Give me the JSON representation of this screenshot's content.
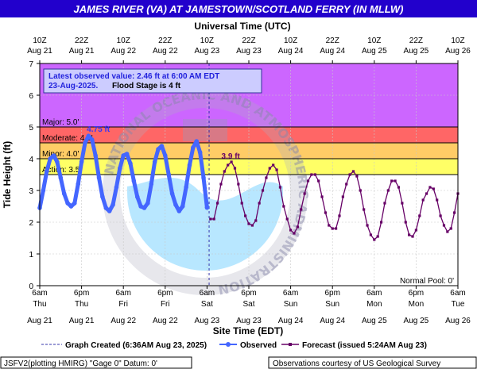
{
  "chart_data": {
    "type": "line",
    "title": "JAMES RIVER (VA) AT JAMESTOWN/SCOTLAND FERRY (IN MLLW)",
    "top_axis_title": "Universal Time (UTC)",
    "xlabel": "Site Time (EDT)",
    "ylabel": "Tide Height (ft)",
    "ylim": [
      0,
      7
    ],
    "y_ticks": [
      "0",
      "1",
      "2",
      "3",
      "4",
      "5",
      "6",
      "7"
    ],
    "x_range_hours": [
      0,
      120
    ],
    "x_ticks_bottom": [
      {
        "time": "6am",
        "day": "Thu",
        "date": "Aug 21"
      },
      {
        "time": "6pm",
        "day": "Thu",
        "date": "Aug 21"
      },
      {
        "time": "6am",
        "day": "Fri",
        "date": "Aug 22"
      },
      {
        "time": "6pm",
        "day": "Fri",
        "date": "Aug 22"
      },
      {
        "time": "6am",
        "day": "Sat",
        "date": "Aug 23"
      },
      {
        "time": "6pm",
        "day": "Sat",
        "date": "Aug 23"
      },
      {
        "time": "6am",
        "day": "Sun",
        "date": "Aug 24"
      },
      {
        "time": "6pm",
        "day": "Sun",
        "date": "Aug 24"
      },
      {
        "time": "6am",
        "day": "Mon",
        "date": "Aug 25"
      },
      {
        "time": "6pm",
        "day": "Mon",
        "date": "Aug 25"
      },
      {
        "time": "6am",
        "day": "Tue",
        "date": "Aug 26"
      }
    ],
    "x_ticks_top": [
      {
        "time": "10Z",
        "date": "Aug 21"
      },
      {
        "time": "22Z",
        "date": "Aug 21"
      },
      {
        "time": "10Z",
        "date": "Aug 22"
      },
      {
        "time": "22Z",
        "date": "Aug 22"
      },
      {
        "time": "10Z",
        "date": "Aug 23"
      },
      {
        "time": "22Z",
        "date": "Aug 23"
      },
      {
        "time": "10Z",
        "date": "Aug 24"
      },
      {
        "time": "22Z",
        "date": "Aug 24"
      },
      {
        "time": "10Z",
        "date": "Aug 25"
      },
      {
        "time": "22Z",
        "date": "Aug 25"
      },
      {
        "time": "10Z",
        "date": "Aug 26"
      }
    ],
    "flood_categories": [
      {
        "name": "Major",
        "label": "Major: 5.0'",
        "min": 5.0,
        "max": 7.0,
        "color": "#cc66ff"
      },
      {
        "name": "Moderate",
        "label": "Moderate: 4.5'",
        "min": 4.5,
        "max": 5.0,
        "color": "#ff6666"
      },
      {
        "name": "Minor",
        "label": "Minor: 4.0'",
        "min": 4.0,
        "max": 4.5,
        "color": "#ffcc66"
      },
      {
        "name": "Action",
        "label": "Action: 3.5'",
        "min": 3.5,
        "max": 4.0,
        "color": "#ffff66"
      }
    ],
    "normal_pool_label": "Normal Pool: 0'",
    "latest_observation": {
      "line1": "Latest observed value: 2.46 ft at 6:00 AM EDT",
      "line2": "23-Aug-2025.",
      "flood_stage": "Flood Stage is 4 ft"
    },
    "graph_created_hours": 48.6,
    "annotations": [
      {
        "text": "4.75 ft",
        "x_hours": 16.8,
        "y": 4.75,
        "color": "#3333ff"
      },
      {
        "text": "3.9 ft",
        "x_hours": 54.8,
        "y": 3.9,
        "color": "#660066"
      }
    ],
    "series": [
      {
        "name": "Observed",
        "color": "#4466ff",
        "x_hours": [
          0,
          1,
          2,
          3,
          4,
          5,
          6,
          7,
          8,
          9,
          10,
          11,
          12,
          13,
          14,
          15,
          16,
          17,
          18,
          19,
          20,
          21,
          22,
          23,
          24,
          25,
          26,
          27,
          28,
          29,
          30,
          31,
          32,
          33,
          34,
          35,
          36,
          37,
          38,
          39,
          40,
          41,
          42,
          43,
          44,
          45,
          46,
          47,
          48
        ],
        "values": [
          2.45,
          3.0,
          3.6,
          4.0,
          4.1,
          3.9,
          3.4,
          2.9,
          2.6,
          2.5,
          2.6,
          3.2,
          3.9,
          4.5,
          4.72,
          4.6,
          4.1,
          3.4,
          2.8,
          2.45,
          2.35,
          2.55,
          3.1,
          3.7,
          4.1,
          4.15,
          3.85,
          3.3,
          2.8,
          2.5,
          2.45,
          2.6,
          3.2,
          3.9,
          4.3,
          4.4,
          4.1,
          3.5,
          2.9,
          2.55,
          2.35,
          2.5,
          3.1,
          3.8,
          4.35,
          4.55,
          4.2,
          3.4,
          2.46
        ]
      },
      {
        "name": "Forecast",
        "issued": "Forecast (issued 5:24AM Aug 23)",
        "color": "#660066",
        "x_hours": [
          49,
          50,
          51,
          52,
          53,
          54,
          55,
          56,
          57,
          58,
          59,
          60,
          61,
          62,
          63,
          64,
          65,
          66,
          67,
          68,
          69,
          70,
          71,
          72,
          73,
          74,
          75,
          76,
          77,
          78,
          79,
          80,
          81,
          82,
          83,
          84,
          85,
          86,
          87,
          88,
          89,
          90,
          91,
          92,
          93,
          94,
          95,
          96,
          97,
          98,
          99,
          100,
          101,
          102,
          103,
          104,
          105,
          106,
          107,
          108,
          109,
          110,
          111,
          112,
          113,
          114,
          115,
          116,
          117,
          118,
          119,
          120
        ],
        "values": [
          2.1,
          2.1,
          2.6,
          3.2,
          3.6,
          3.8,
          3.9,
          3.7,
          3.2,
          2.6,
          2.2,
          1.95,
          1.9,
          2.05,
          2.6,
          3.0,
          3.4,
          3.7,
          3.8,
          3.65,
          3.1,
          2.5,
          2.1,
          1.75,
          1.65,
          1.85,
          2.4,
          2.9,
          3.3,
          3.5,
          3.5,
          3.3,
          2.8,
          2.3,
          1.9,
          1.8,
          1.8,
          2.2,
          2.8,
          3.2,
          3.5,
          3.6,
          3.45,
          3.0,
          2.4,
          1.9,
          1.6,
          1.45,
          1.55,
          2.0,
          2.6,
          3.0,
          3.3,
          3.3,
          3.1,
          2.6,
          2.0,
          1.6,
          1.55,
          1.75,
          2.2,
          2.7,
          2.9,
          3.1,
          3.05,
          2.7,
          2.2,
          1.9,
          1.7,
          1.8,
          2.3,
          2.9
        ]
      }
    ],
    "legend": {
      "graph_created": "Graph Created (6:36AM Aug 23, 2025)",
      "observed": "Observed",
      "forecast": "Forecast (issued 5:24AM Aug 23)"
    },
    "footer": {
      "left": "JSFV2(plotting HMIRG) \"Gage 0\" Datum: 0'",
      "right": "Observations courtesy of US Geological Survey"
    },
    "watermark_text": "NATIONAL OCEANIC AND ATMOSPHERIC ADMINISTRATION · U.S. DEPARTMENT OF COMMERCE · NOAA"
  }
}
